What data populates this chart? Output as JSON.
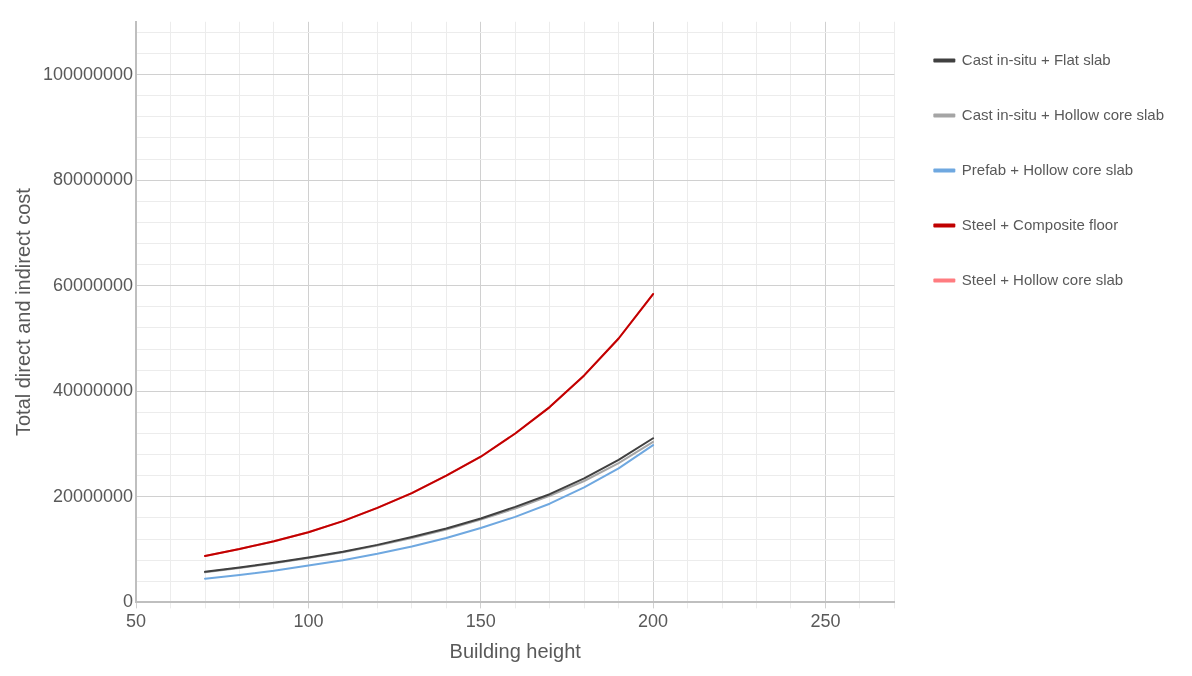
{
  "chart_data": {
    "type": "line",
    "xlabel": "Building height",
    "ylabel": "Total direct and indirect cost",
    "x": [
      70,
      80,
      90,
      100,
      110,
      120,
      130,
      140,
      150,
      160,
      170,
      180,
      190,
      200
    ],
    "series": [
      {
        "name": "Cast in-situ + Flat slab",
        "color": "#404040",
        "values": [
          5800000,
          6600000,
          7500000,
          8500000,
          9600000,
          10900000,
          12400000,
          14000000,
          15900000,
          18100000,
          20500000,
          23500000,
          27000000,
          31100000
        ]
      },
      {
        "name": "Cast in-situ + Hollow core slab",
        "color": "#a5a5a5",
        "values": [
          5700000,
          6500000,
          7400000,
          8400000,
          9500000,
          10800000,
          12200000,
          13800000,
          15700000,
          17800000,
          20200000,
          23000000,
          26400000,
          30400000
        ]
      },
      {
        "name": "Prefab + Hollow core slab",
        "color": "#6fa8e0",
        "values": [
          4500000,
          5200000,
          6000000,
          7000000,
          8000000,
          9200000,
          10600000,
          12200000,
          14100000,
          16200000,
          18700000,
          21800000,
          25400000,
          29800000
        ]
      },
      {
        "name": "Steel + Composite floor",
        "color": "#c00000",
        "values": [
          8800000,
          10100000,
          11600000,
          13300000,
          15400000,
          17900000,
          20700000,
          24000000,
          27600000,
          32000000,
          37000000,
          43000000,
          50000000,
          58400000
        ]
      },
      {
        "name": "Steel + Hollow core slab",
        "color": "#ff7c80",
        "values": [
          8800000,
          10100000,
          11600000,
          13300000,
          15400000,
          17900000,
          20700000,
          24000000,
          27600000,
          32000000,
          37000000,
          43000000,
          50000000,
          58400000
        ]
      }
    ],
    "xlim": [
      50,
      270
    ],
    "xticks": [
      50,
      {
        "value": 60,
        "label": null
      },
      {
        "value": 70,
        "label": null
      },
      {
        "value": 80,
        "label": null
      },
      {
        "value": 90,
        "label": null
      },
      100,
      {
        "value": 110,
        "label": null
      },
      {
        "value": 120,
        "label": null
      },
      {
        "value": 130,
        "label": null
      },
      {
        "value": 140,
        "label": null
      },
      150,
      {
        "value": 160,
        "label": null
      },
      {
        "value": 170,
        "label": null
      },
      {
        "value": 180,
        "label": null
      },
      {
        "value": 190,
        "label": null
      },
      200,
      {
        "value": 210,
        "label": null
      },
      {
        "value": 220,
        "label": null
      },
      {
        "value": 230,
        "label": null
      },
      {
        "value": 240,
        "label": null
      },
      250,
      {
        "value": 260,
        "label": null
      },
      {
        "value": 270,
        "label": null
      }
    ],
    "ylim": [
      0,
      110000000
    ],
    "yticks": [
      0,
      {
        "value": 4000000,
        "label": null
      },
      {
        "value": 8000000,
        "label": null
      },
      {
        "value": 12000000,
        "label": null
      },
      {
        "value": 16000000,
        "label": null
      },
      20000000,
      {
        "value": 24000000,
        "label": null
      },
      {
        "value": 28000000,
        "label": null
      },
      {
        "value": 32000000,
        "label": null
      },
      {
        "value": 36000000,
        "label": null
      },
      40000000,
      {
        "value": 44000000,
        "label": null
      },
      {
        "value": 48000000,
        "label": null
      },
      {
        "value": 52000000,
        "label": null
      },
      {
        "value": 56000000,
        "label": null
      },
      60000000,
      {
        "value": 64000000,
        "label": null
      },
      {
        "value": 68000000,
        "label": null
      },
      {
        "value": 72000000,
        "label": null
      },
      {
        "value": 76000000,
        "label": null
      },
      80000000,
      {
        "value": 84000000,
        "label": null
      },
      {
        "value": 88000000,
        "label": null
      },
      {
        "value": 92000000,
        "label": null
      },
      {
        "value": 96000000,
        "label": null
      },
      100000000,
      {
        "value": 104000000,
        "label": null
      },
      {
        "value": 108000000,
        "label": null
      }
    ],
    "grid": true,
    "legend": "right",
    "marker": "none",
    "line_style": "solid"
  }
}
